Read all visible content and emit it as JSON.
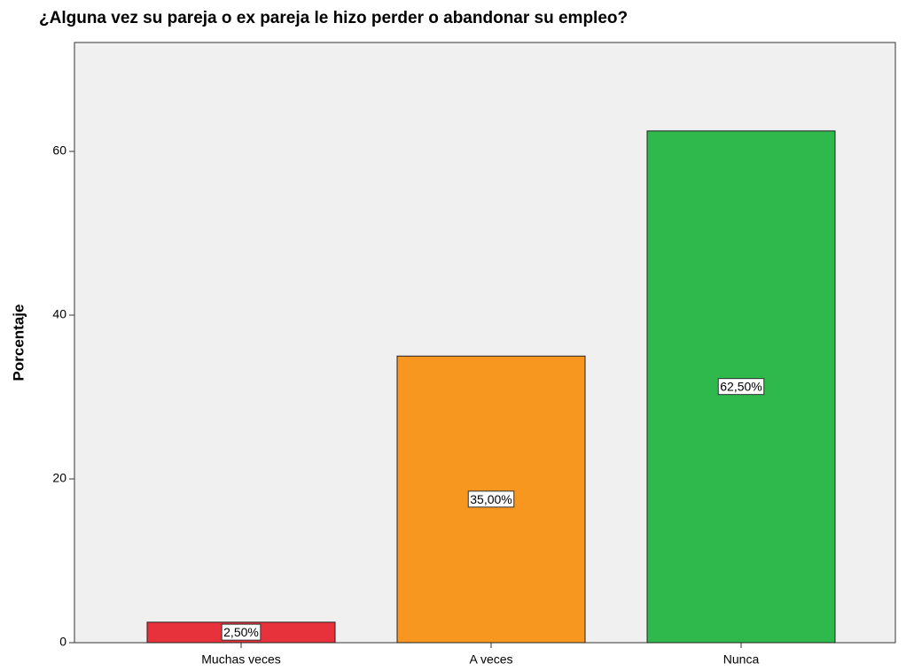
{
  "chart_data": {
    "type": "bar",
    "title": "¿Alguna vez su pareja o ex pareja le hizo perder o abandonar su empleo?",
    "y_label": "Porcentaje",
    "categories": [
      "Muchas veces",
      "A veces",
      "Nunca"
    ],
    "values": [
      2.5,
      35,
      62.5
    ],
    "value_labels": [
      "2,50%",
      "35,00%",
      "62,50%"
    ],
    "colors": [
      "#e8323b",
      "#f7971f",
      "#2fb84b"
    ],
    "ylim": [
      0,
      73.3
    ],
    "yticks": [
      0,
      20,
      40,
      60
    ],
    "grid": false
  }
}
